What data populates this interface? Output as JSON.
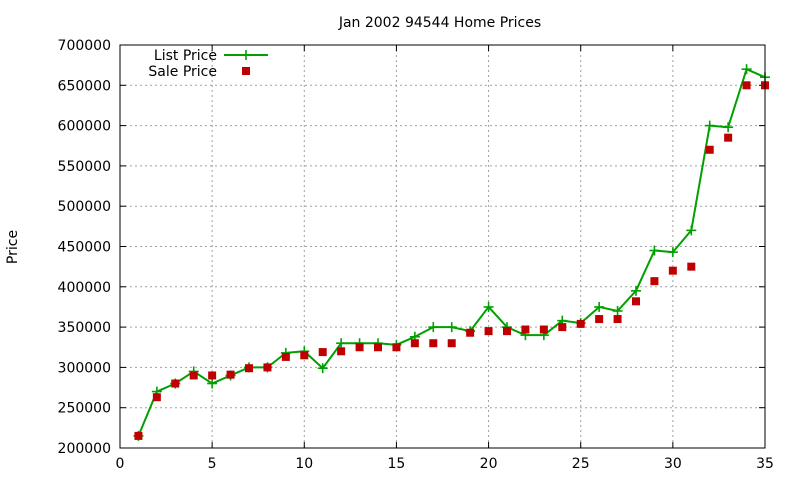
{
  "chart_data": {
    "type": "line",
    "title": "Jan 2002 94544 Home Prices",
    "xlabel": "",
    "ylabel": "Price",
    "xlim": [
      0,
      35
    ],
    "ylim": [
      200000,
      700000
    ],
    "xticks": [
      0,
      5,
      10,
      15,
      20,
      25,
      30,
      35
    ],
    "yticks": [
      200000,
      250000,
      300000,
      350000,
      400000,
      450000,
      500000,
      550000,
      600000,
      650000,
      700000
    ],
    "grid": true,
    "legend_position": "top-left",
    "series": [
      {
        "name": "List Price",
        "style": "line-points",
        "color": "#00a000",
        "x": [
          1,
          2,
          3,
          4,
          5,
          6,
          7,
          8,
          9,
          10,
          11,
          12,
          13,
          14,
          15,
          16,
          17,
          18,
          19,
          20,
          21,
          22,
          23,
          24,
          25,
          26,
          27,
          28,
          29,
          30,
          31,
          32,
          33,
          34,
          35
        ],
        "values": [
          215000,
          270000,
          280000,
          295000,
          280000,
          290000,
          300000,
          300000,
          318000,
          320000,
          299000,
          330000,
          330000,
          330000,
          328000,
          338000,
          350000,
          350000,
          345000,
          375000,
          350000,
          340000,
          340000,
          358000,
          355000,
          375000,
          370000,
          395000,
          445000,
          443000,
          470000,
          600000,
          598000,
          670000,
          660000
        ]
      },
      {
        "name": "Sale Price",
        "style": "points",
        "color": "#c00000",
        "x": [
          1,
          2,
          3,
          4,
          5,
          6,
          7,
          8,
          9,
          10,
          11,
          12,
          13,
          14,
          15,
          16,
          17,
          18,
          19,
          20,
          21,
          22,
          23,
          24,
          25,
          26,
          27,
          28,
          29,
          30,
          31,
          32,
          33,
          34,
          35
        ],
        "values": [
          215000,
          263000,
          280000,
          290000,
          290000,
          291000,
          299000,
          300000,
          313000,
          315000,
          319000,
          320000,
          325000,
          325000,
          325000,
          330000,
          330000,
          330000,
          343000,
          345000,
          345000,
          347000,
          347000,
          350000,
          354000,
          360000,
          360000,
          382000,
          407000,
          420000,
          425000,
          570000,
          585000,
          650000,
          650000
        ]
      }
    ]
  }
}
